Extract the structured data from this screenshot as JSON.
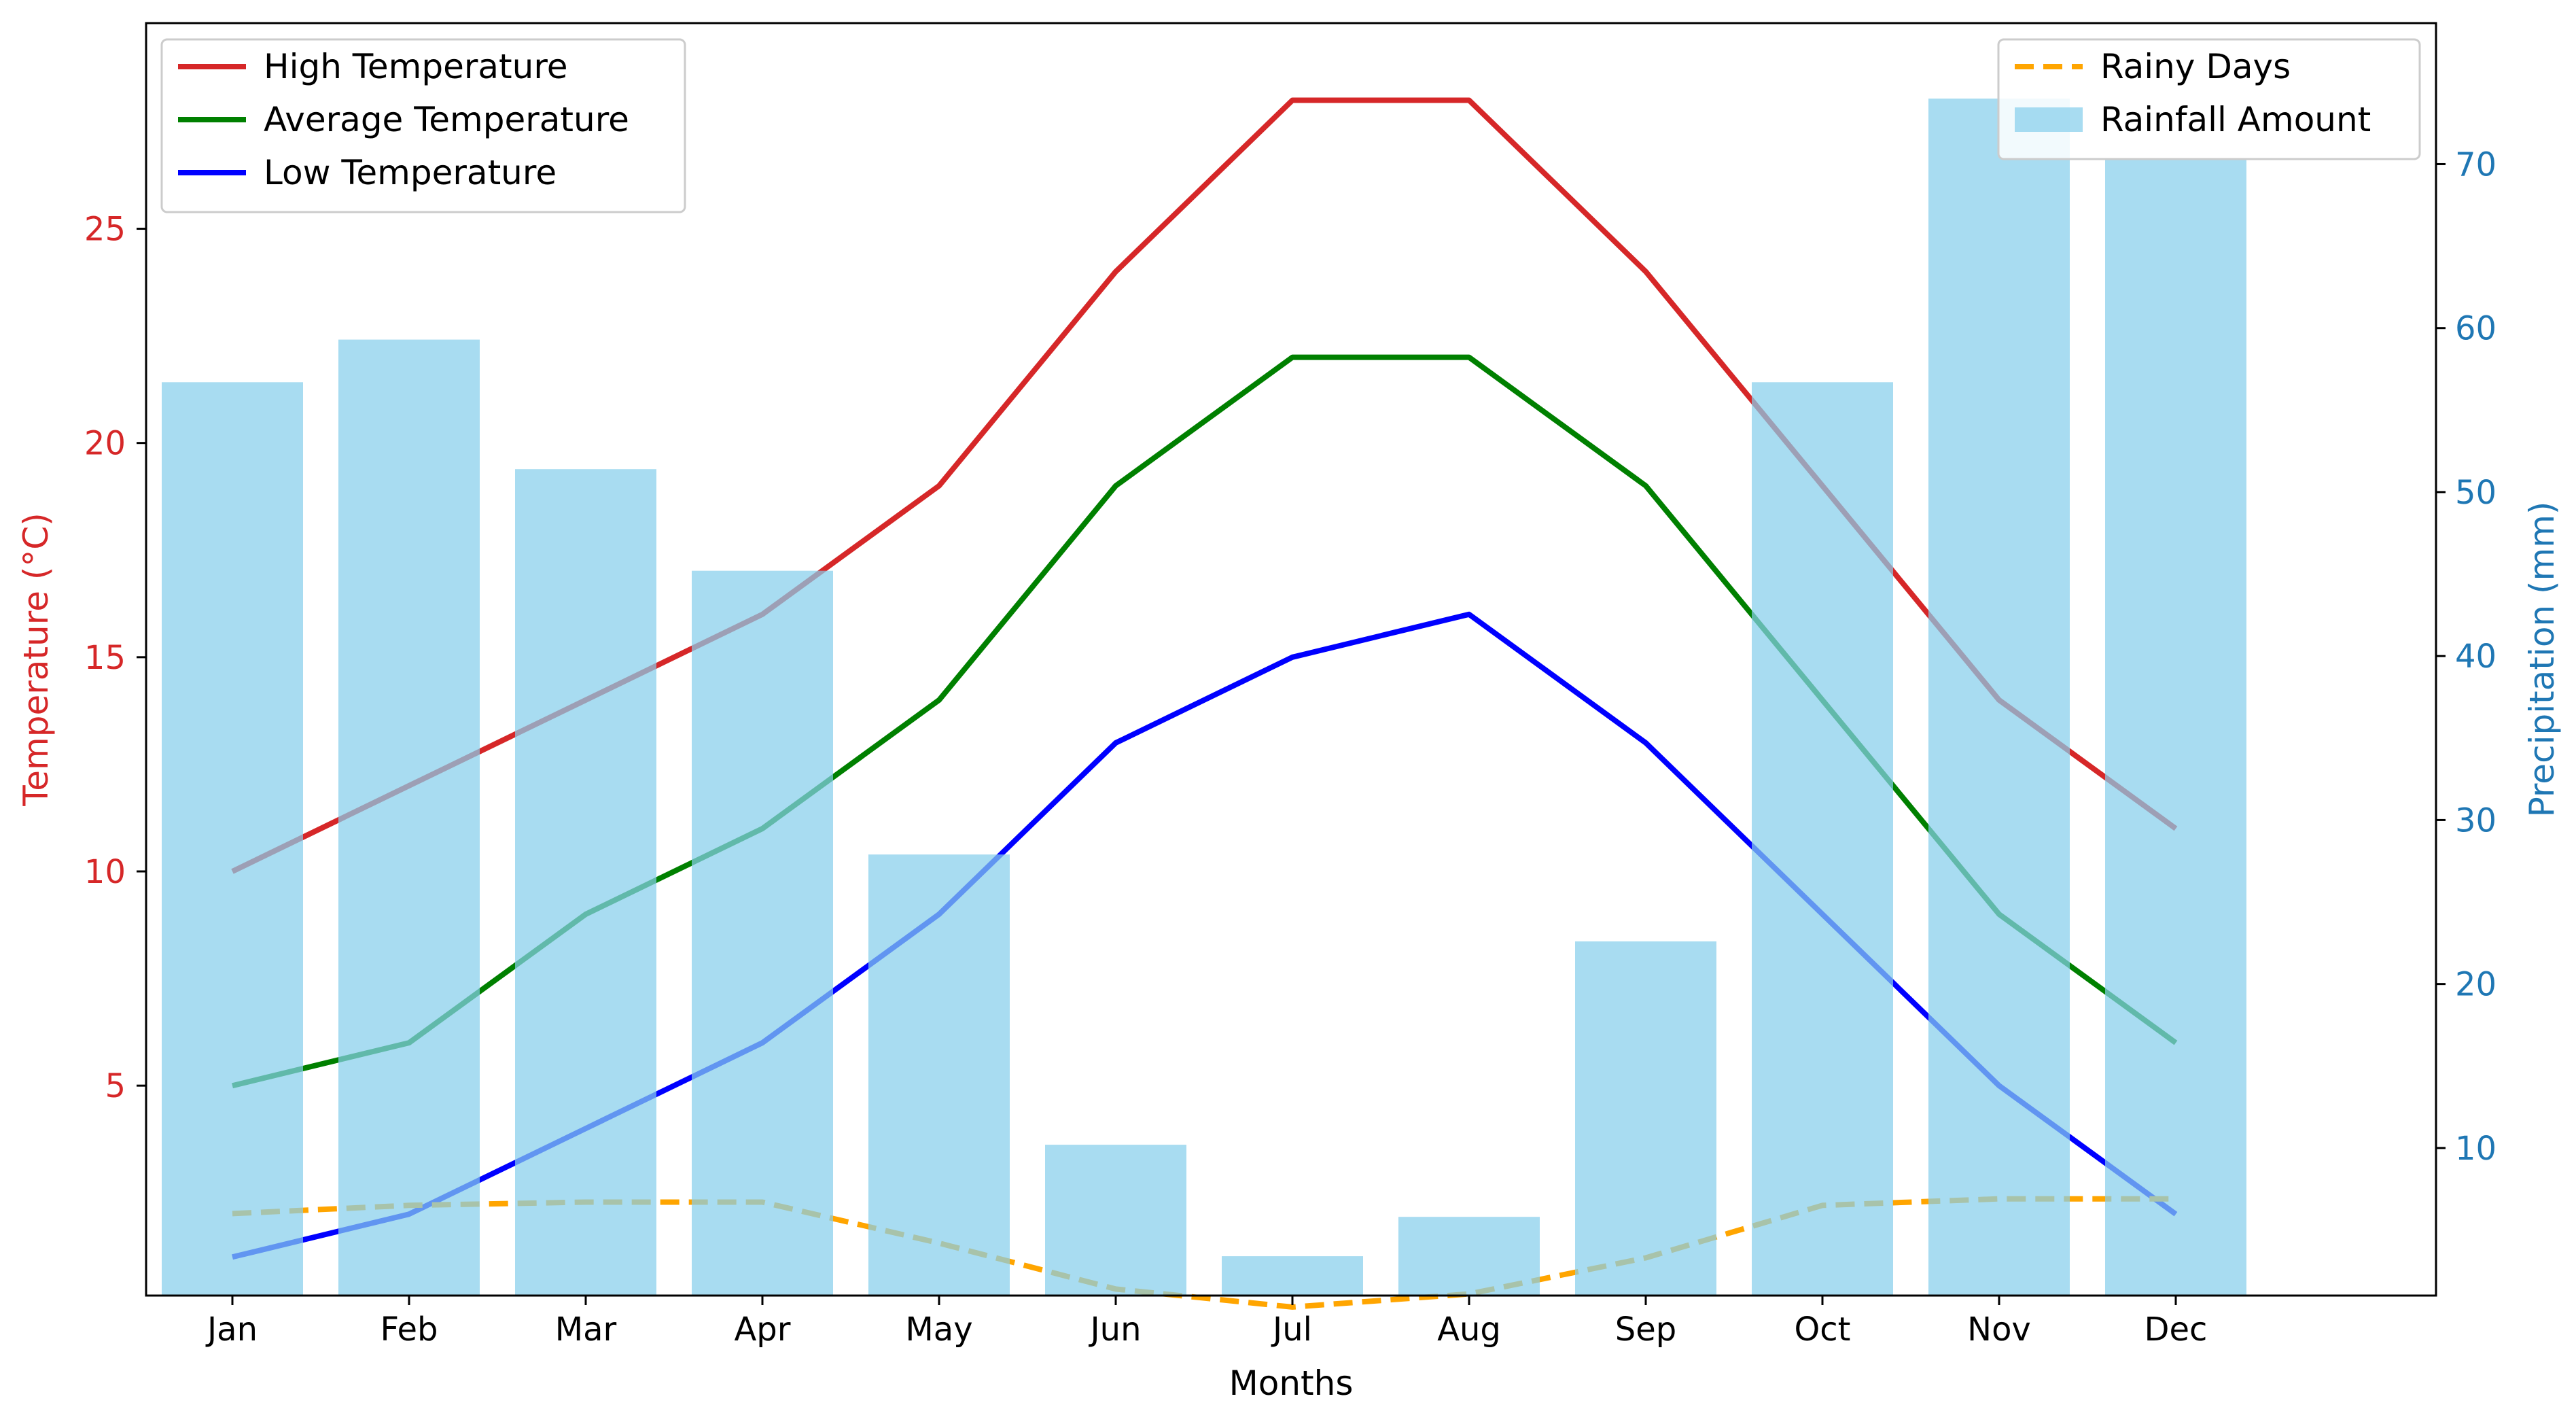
{
  "chart_data": {
    "type": "line+bar (dual axis)",
    "categories": [
      "Jan",
      "Feb",
      "Mar",
      "Apr",
      "May",
      "Jun",
      "Jul",
      "Aug",
      "Sep",
      "Oct",
      "Nov",
      "Dec"
    ],
    "xlabel": "Months",
    "ylabel_left": "Temperature (°C)",
    "ylabel_right": "Precipitation (mm)",
    "ylim_left": [
      0.1,
      29.8
    ],
    "ylim_right": [
      1,
      78.6
    ],
    "yticks_left": [
      5,
      10,
      15,
      20,
      25
    ],
    "yticks_right": [
      10,
      20,
      30,
      40,
      50,
      60,
      70
    ],
    "series_left": [
      {
        "name": "High Temperature",
        "color": "#d62728",
        "style": "solid",
        "values": [
          10,
          12,
          14,
          16,
          19,
          24,
          28,
          28,
          24,
          19,
          14,
          11
        ]
      },
      {
        "name": "Average Temperature",
        "color": "#008000",
        "style": "solid",
        "values": [
          5,
          6,
          9,
          11,
          14,
          19,
          22,
          22,
          19,
          14,
          9,
          6
        ]
      },
      {
        "name": "Low Temperature",
        "color": "#0000ff",
        "style": "solid",
        "values": [
          1,
          2,
          4,
          6,
          9,
          13,
          15,
          16,
          13,
          9,
          5,
          2
        ]
      }
    ],
    "series_right": [
      {
        "name": "Rainy Days",
        "color": "#ffa500",
        "style": "dashed",
        "type": "line",
        "values": [
          6,
          6.5,
          6.7,
          6.7,
          4.2,
          1.4,
          0.3,
          1.1,
          3.3,
          6.5,
          6.9,
          6.9
        ]
      },
      {
        "name": "Rainfall Amount",
        "color": "#87ceeb",
        "type": "bar",
        "values": [
          56.7,
          59.3,
          51.4,
          45.2,
          27.9,
          10.2,
          3.4,
          5.8,
          22.6,
          56.7,
          74.0,
          70.3
        ]
      }
    ],
    "legend_left_position": "upper-left",
    "legend_right_position": "upper-right",
    "grid": false
  }
}
